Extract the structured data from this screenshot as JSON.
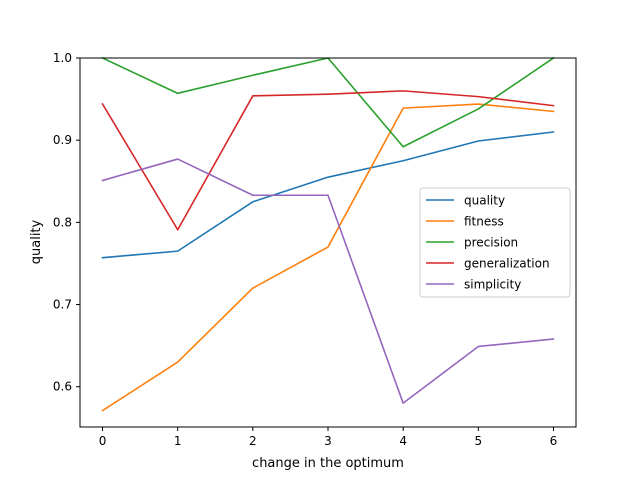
{
  "chart_data": {
    "type": "line",
    "title": "",
    "xlabel": "change in the optimum",
    "ylabel": "quality",
    "x": [
      0,
      1,
      2,
      3,
      4,
      5,
      6
    ],
    "xlim": [
      -0.3,
      6.3
    ],
    "ylim": [
      0.551,
      1.0
    ],
    "xticks": [
      0,
      1,
      2,
      3,
      4,
      5,
      6
    ],
    "yticks": [
      0.6,
      0.7,
      0.8,
      0.9,
      1.0
    ],
    "xtick_labels": [
      "0",
      "1",
      "2",
      "3",
      "4",
      "5",
      "6"
    ],
    "ytick_labels": [
      "0.6",
      "0.7",
      "0.8",
      "0.9",
      "1.0"
    ],
    "grid": false,
    "legend_position": "center-right",
    "series": [
      {
        "name": "quality",
        "color": "#1f77b4",
        "values": [
          0.757,
          0.765,
          0.825,
          0.855,
          0.875,
          0.899,
          0.91
        ]
      },
      {
        "name": "fitness",
        "color": "#ff7f0e",
        "values": [
          0.571,
          0.63,
          0.72,
          0.77,
          0.939,
          0.944,
          0.935
        ]
      },
      {
        "name": "precision",
        "color": "#2ca02c",
        "values": [
          1.0,
          0.957,
          0.979,
          1.0,
          0.892,
          0.938,
          1.0
        ]
      },
      {
        "name": "generalization",
        "color": "#d62728",
        "values": [
          0.944,
          0.791,
          0.954,
          0.956,
          0.96,
          0.953,
          0.942
        ]
      },
      {
        "name": "simplicity",
        "color": "#9467bd",
        "values": [
          0.851,
          0.877,
          0.833,
          0.833,
          0.58,
          0.649,
          0.658
        ]
      }
    ]
  }
}
